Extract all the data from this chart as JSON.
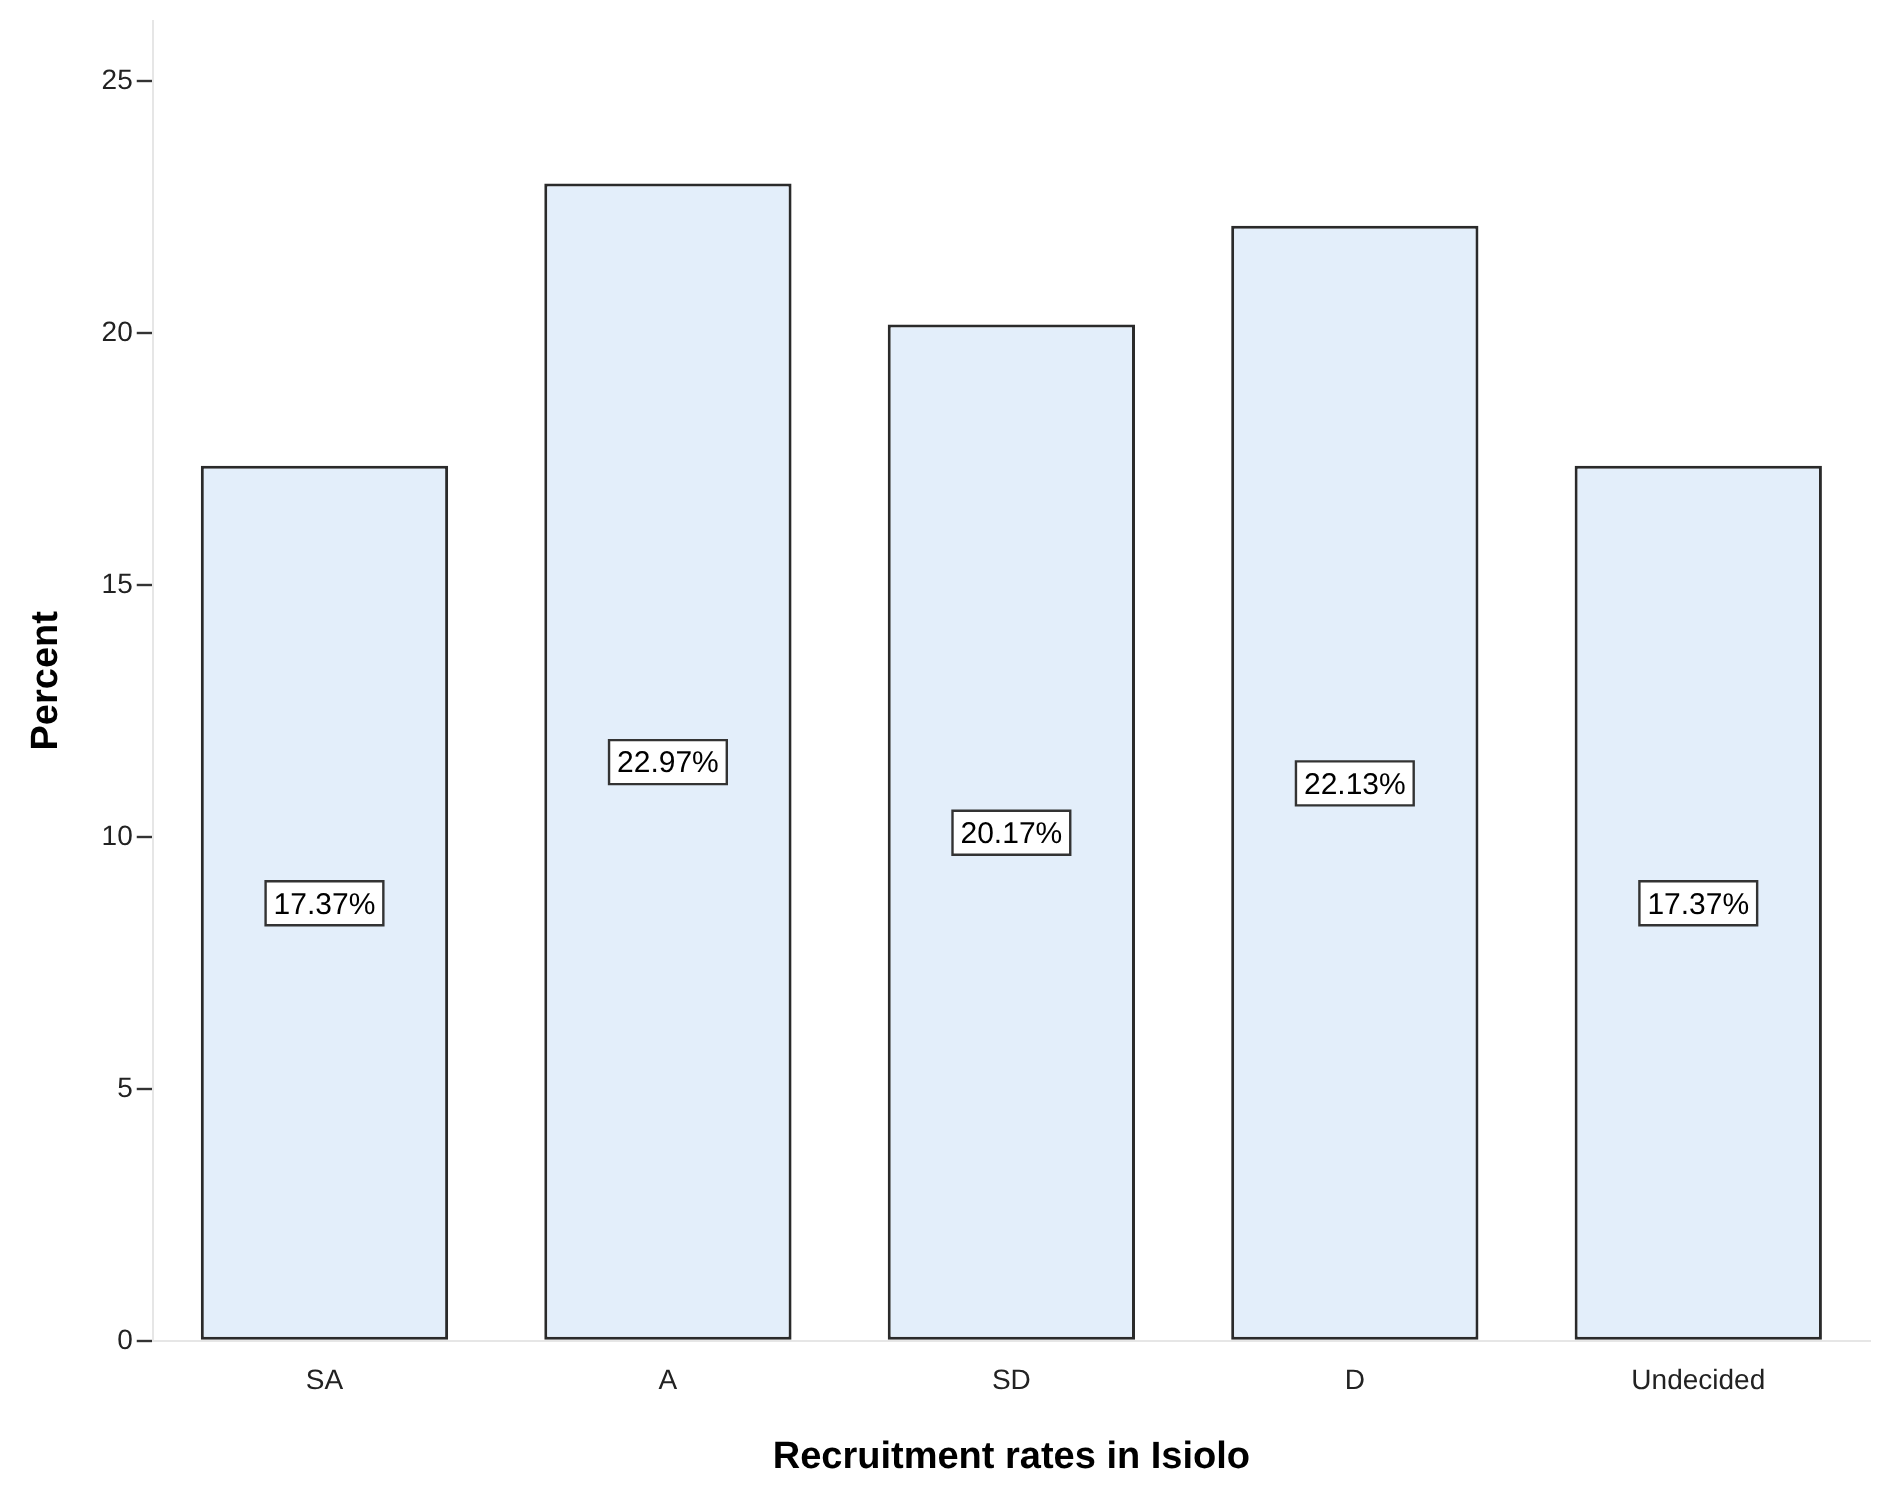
{
  "chart_data": {
    "type": "bar",
    "xlabel": "Recruitment rates in Isiolo",
    "ylabel": "Percent",
    "categories": [
      "SA",
      "A",
      "SD",
      "D",
      "Undecided"
    ],
    "values": [
      17.37,
      22.97,
      20.17,
      22.13,
      17.37
    ],
    "value_labels": [
      "17.37%",
      "22.97%",
      "20.17%",
      "22.13%",
      "17.37%"
    ],
    "color": "#e3eefa",
    "ylim": [
      0,
      26.2
    ],
    "yticks": [
      0,
      5,
      10,
      15,
      20,
      25
    ],
    "grid": false
  }
}
